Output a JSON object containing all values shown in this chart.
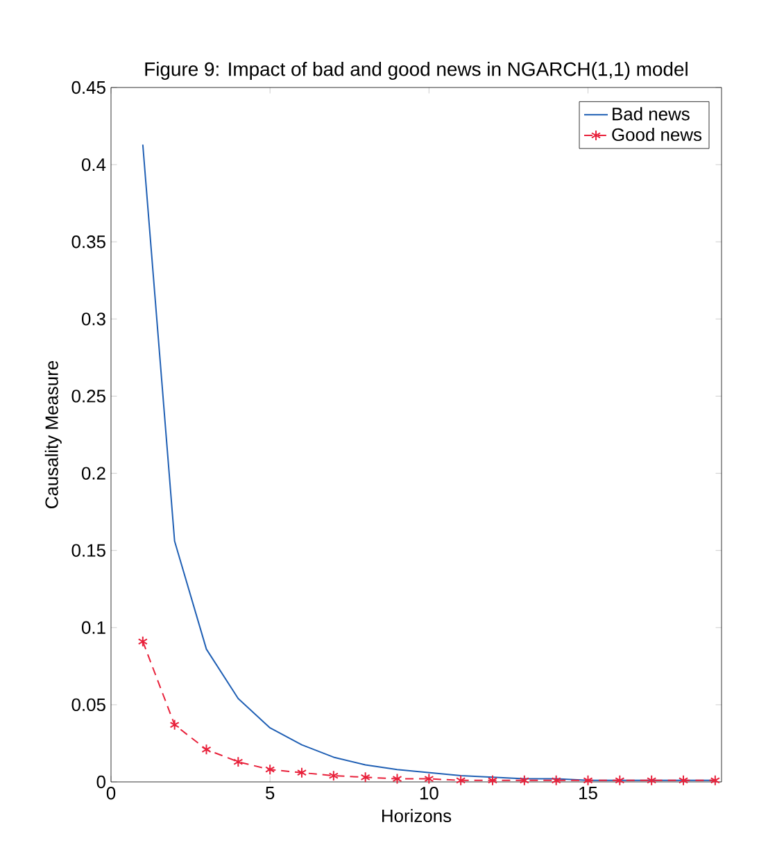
{
  "chart_data": {
    "type": "line",
    "title": "Figure 9: Impact of bad and good news in NGARCH(1,1) model",
    "xlabel": "Horizons",
    "ylabel": "Causality Measure",
    "x": [
      1,
      2,
      3,
      4,
      5,
      6,
      7,
      8,
      9,
      10,
      11,
      12,
      13,
      14,
      15,
      16,
      17,
      18,
      19
    ],
    "series": [
      {
        "name": "Bad news",
        "color": "#1f5fb4",
        "marker": "none",
        "line_style": "solid",
        "values": [
          0.413,
          0.156,
          0.086,
          0.054,
          0.035,
          0.024,
          0.016,
          0.011,
          0.008,
          0.006,
          0.004,
          0.003,
          0.002,
          0.002,
          0.001,
          0.001,
          0.001,
          0.001,
          0.001
        ]
      },
      {
        "name": "Good news",
        "color": "#e8203a",
        "marker": "cross",
        "line_style": "dashed",
        "values": [
          0.091,
          0.037,
          0.021,
          0.013,
          0.008,
          0.006,
          0.004,
          0.003,
          0.002,
          0.002,
          0.001,
          0.001,
          0.001,
          0.001,
          0.001,
          0.001,
          0.001,
          0.001,
          0.001
        ]
      }
    ],
    "xlim": [
      0,
      19.2
    ],
    "ylim": [
      0,
      0.45
    ],
    "xticks": [
      0,
      5,
      10,
      15
    ],
    "yticks": [
      0,
      0.05,
      0.1,
      0.15,
      0.2,
      0.25,
      0.3,
      0.35,
      0.4,
      0.45
    ],
    "grid": false,
    "legend": "top right"
  }
}
